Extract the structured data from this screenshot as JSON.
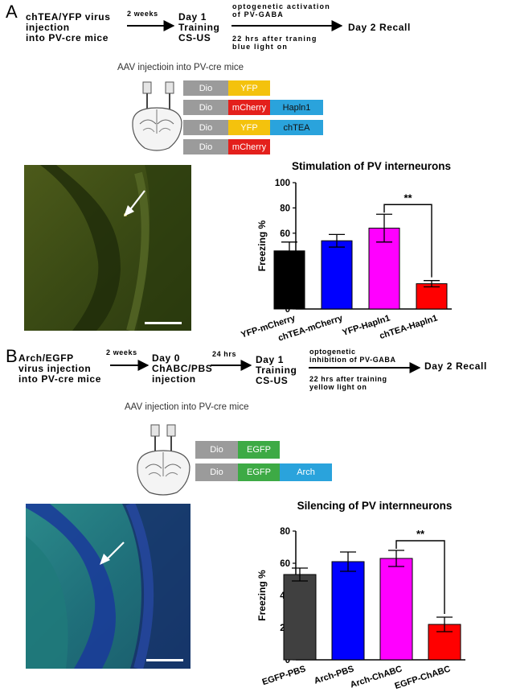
{
  "panelA": {
    "letter": "A",
    "step1": [
      "chTEA/YFP virus",
      "injection",
      "into PV-cre mice"
    ],
    "arrow1_label": "2 weeks",
    "step2": [
      "Day 1",
      "Training",
      "CS-US"
    ],
    "arrow2_top": [
      "optogenetic activation",
      "of PV-GABA"
    ],
    "arrow2_bottom": [
      "22 hrs after traning",
      "blue light on"
    ],
    "step3": "Day 2 Recall",
    "aav_title": "AAV injectioin into PV-cre mice",
    "constructs": [
      [
        {
          "text": "Dio",
          "color": "#9b9b9b"
        },
        {
          "text": "YFP",
          "color": "#f4c20d"
        }
      ],
      [
        {
          "text": "Dio",
          "color": "#9b9b9b"
        },
        {
          "text": "mCherry",
          "color": "#e4201c"
        },
        {
          "text": "Hapln1",
          "color": "#2aa3dc"
        }
      ],
      [
        {
          "text": "Dio",
          "color": "#9b9b9b"
        },
        {
          "text": "YFP",
          "color": "#f4c20d"
        },
        {
          "text": "chTEA",
          "color": "#2aa3dc"
        }
      ],
      [
        {
          "text": "Dio",
          "color": "#9b9b9b"
        },
        {
          "text": "mCherry",
          "color": "#e4201c"
        }
      ]
    ]
  },
  "panelB": {
    "letter": "B",
    "step1": [
      "Arch/EGFP",
      "virus injection",
      "into PV-cre mice"
    ],
    "arrow1_label": "2 weeks",
    "step2": [
      "Day 0",
      "ChABC/PBS",
      "injection"
    ],
    "arrow2_label": "24 hrs",
    "step3": [
      "Day 1",
      "Training",
      "CS-US"
    ],
    "arrow3_top": [
      "optogenetic",
      "inhibition of PV-GABA"
    ],
    "arrow3_bottom": [
      "22 hrs after training",
      "yellow  light on"
    ],
    "step4": "Day 2 Recall",
    "aav_title": "AAV injection into PV-cre mice",
    "constructs": [
      [
        {
          "text": "Dio",
          "color": "#9b9b9b"
        },
        {
          "text": "EGFP",
          "color": "#3daa45"
        }
      ],
      [
        {
          "text": "Dio",
          "color": "#9b9b9b"
        },
        {
          "text": "EGFP",
          "color": "#3daa45"
        },
        {
          "text": "Arch",
          "color": "#2aa3dc"
        }
      ]
    ]
  },
  "chart_data": [
    {
      "type": "bar",
      "title": "Stimulation of PV interneurons",
      "ylabel": "Freezing %",
      "xlabel": "",
      "ylim": [
        0,
        100
      ],
      "yticks": [
        0,
        20,
        40,
        60,
        80,
        100
      ],
      "categories": [
        "YFP-mCherry",
        "chTEA-mCherry",
        "YFP-Hapln1",
        "chTEA-Hapln1"
      ],
      "values": [
        46,
        54,
        64,
        20
      ],
      "errors": [
        7,
        5,
        11,
        2.5
      ],
      "colors": [
        "#000000",
        "#0000ff",
        "#ff00ff",
        "#ff0000"
      ],
      "significance": {
        "from": 2,
        "to": 3,
        "label": "**"
      },
      "grid": false
    },
    {
      "type": "bar",
      "title": "Silencing of PV internneurons",
      "ylabel": "Freezing %",
      "xlabel": "",
      "ylim": [
        0,
        80
      ],
      "yticks": [
        0,
        20,
        40,
        60,
        80
      ],
      "categories": [
        "EGFP-PBS",
        "Arch-PBS",
        "Arch-ChABC",
        "EGFP-ChABC"
      ],
      "values": [
        53,
        61,
        63,
        22
      ],
      "errors": [
        4,
        6,
        5,
        4.5
      ],
      "colors": [
        "#404040",
        "#0000ff",
        "#ff00ff",
        "#ff0000"
      ],
      "significance": {
        "from": 2,
        "to": 3,
        "label": "**"
      },
      "grid": false
    }
  ]
}
